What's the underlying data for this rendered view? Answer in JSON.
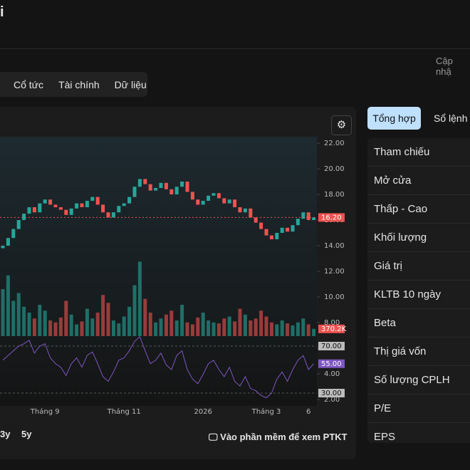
{
  "header": {
    "title": "i",
    "updated": "Cập nhậ"
  },
  "tabs": [
    "Cổ tức",
    "Tài chính",
    "Dữ liệu"
  ],
  "chart_data": {
    "type": "candlestick",
    "ylim": [
      1.5,
      22.5
    ],
    "yticks": [
      {
        "value": 22,
        "label": "22.00"
      },
      {
        "value": 20,
        "label": "20.00"
      },
      {
        "value": 18,
        "label": "18.00"
      },
      {
        "value": 16,
        "label": "16.00"
      },
      {
        "value": 14,
        "label": "14.00"
      },
      {
        "value": 12,
        "label": "12.00"
      },
      {
        "value": 10,
        "label": "10.00"
      },
      {
        "value": 8,
        "label": "8.00"
      },
      {
        "value": 6,
        "label": "6.00"
      },
      {
        "value": 4,
        "label": "4.00"
      },
      {
        "value": 2,
        "label": "2.00"
      }
    ],
    "x_labels": [
      {
        "index": 8,
        "label": "Tháng 9"
      },
      {
        "index": 23,
        "label": "Tháng 11"
      },
      {
        "index": 38,
        "label": "2026"
      },
      {
        "index": 50,
        "label": "Tháng 3"
      },
      {
        "index": 58,
        "label": "6"
      }
    ],
    "open": [
      13.8,
      14.0,
      14.6,
      15.3,
      16.0,
      16.5,
      17.0,
      16.6,
      17.3,
      17.6,
      17.2,
      17.0,
      16.8,
      16.4,
      16.9,
      17.3,
      17.0,
      17.5,
      17.8,
      17.2,
      16.6,
      16.2,
      16.6,
      17.1,
      17.3,
      17.8,
      18.6,
      19.2,
      18.8,
      18.3,
      18.5,
      18.9,
      18.4,
      18.0,
      18.6,
      19.0,
      18.2,
      17.6,
      17.2,
      17.5,
      17.9,
      18.1,
      17.7,
      17.3,
      17.6,
      17.0,
      16.6,
      16.9,
      16.2,
      15.8,
      15.3,
      14.8,
      14.5,
      15.0,
      15.4,
      15.1,
      15.6,
      16.1,
      16.6,
      16.0
    ],
    "close": [
      14.0,
      14.6,
      15.3,
      16.0,
      16.5,
      17.0,
      16.6,
      17.3,
      17.6,
      17.2,
      17.0,
      16.8,
      16.4,
      16.9,
      17.3,
      17.0,
      17.5,
      17.8,
      17.2,
      16.6,
      16.2,
      16.6,
      17.1,
      17.3,
      17.8,
      18.6,
      19.2,
      18.8,
      18.3,
      18.5,
      18.9,
      18.4,
      18.0,
      18.6,
      19.0,
      18.2,
      17.6,
      17.2,
      17.5,
      17.9,
      18.1,
      17.7,
      17.3,
      17.6,
      17.0,
      16.6,
      16.9,
      16.2,
      15.8,
      15.3,
      14.8,
      14.5,
      15.0,
      15.4,
      15.1,
      15.6,
      16.1,
      16.6,
      16.0,
      16.2
    ],
    "up_color": "#26a69a",
    "down_color": "#ef5350",
    "last_price_label": "16.20",
    "volume": [
      2400,
      3100,
      1800,
      2200,
      1500,
      1200,
      900,
      1600,
      1300,
      800,
      700,
      950,
      1800,
      1100,
      600,
      750,
      1400,
      900,
      1200,
      2100,
      1700,
      800,
      650,
      1000,
      1500,
      2600,
      3800,
      1900,
      1200,
      700,
      900,
      1100,
      1300,
      800,
      1600,
      700,
      600,
      950,
      1200,
      800,
      700,
      650,
      900,
      1000,
      750,
      1400,
      1100,
      800,
      900,
      1300,
      1000,
      700,
      600,
      800,
      650,
      550,
      700,
      900,
      600,
      370.2
    ],
    "volume_ylim": [
      0,
      4000
    ],
    "last_volume_label": "370.2K",
    "rsi": [
      58,
      62,
      66,
      70,
      72,
      75,
      64,
      70,
      72,
      60,
      55,
      52,
      45,
      55,
      60,
      52,
      62,
      65,
      55,
      44,
      40,
      48,
      58,
      60,
      66,
      74,
      78,
      66,
      55,
      58,
      64,
      54,
      50,
      62,
      66,
      50,
      42,
      38,
      46,
      55,
      58,
      50,
      44,
      52,
      40,
      36,
      44,
      34,
      32,
      28,
      26,
      30,
      42,
      48,
      40,
      50,
      58,
      62,
      50,
      55
    ],
    "rsi_yticks": [
      {
        "value": 30,
        "label": "30.00"
      },
      {
        "value": 70,
        "label": "70.00"
      }
    ],
    "rsi_color": "#7e57c2",
    "last_rsi_label": "55.00"
  },
  "ranges": [
    "3y",
    "5y"
  ],
  "link": "Vào phần mềm để xem PTKT",
  "side_tabs": [
    "Tổng hợp",
    "Sổ lệnh"
  ],
  "stats": [
    "Tham chiếu",
    "Mở cửa",
    "Thấp - Cao",
    "Khối lượng",
    "Giá trị",
    "KLTB 10 ngày",
    "Beta",
    "Thị giá vốn",
    "Số lượng CPLH",
    "P/E",
    "EPS"
  ]
}
